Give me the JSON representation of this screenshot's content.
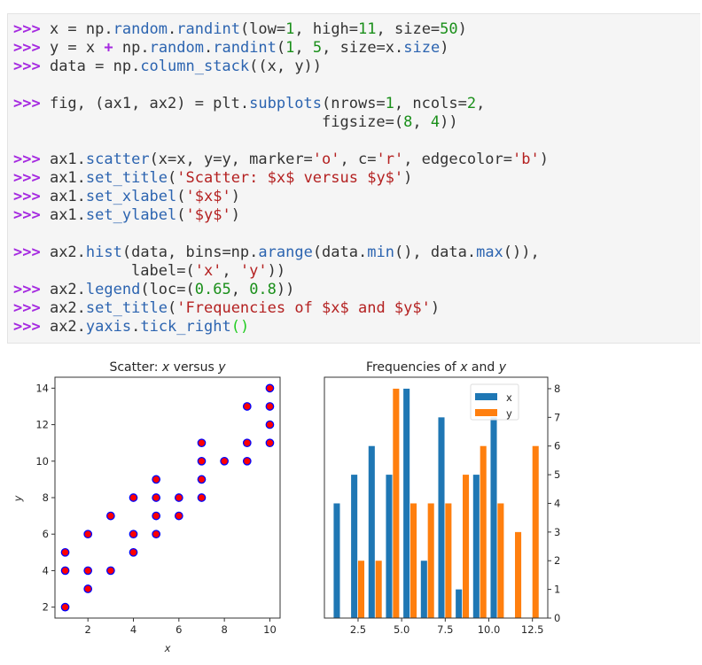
{
  "code": {
    "lines": [
      [
        [
          ">>> ",
          "p"
        ],
        [
          "x = np.",
          "n"
        ],
        [
          "random",
          "f"
        ],
        [
          ".",
          "n"
        ],
        [
          "randint",
          "f"
        ],
        [
          "(low=",
          "n"
        ],
        [
          "1",
          "g"
        ],
        [
          ", high=",
          "n"
        ],
        [
          "11",
          "g"
        ],
        [
          ", size=",
          "n"
        ],
        [
          "50",
          "g"
        ],
        [
          ")",
          "n"
        ]
      ],
      [
        [
          ">>> ",
          "p"
        ],
        [
          "y = x ",
          "n"
        ],
        [
          "+",
          "o"
        ],
        [
          " np.",
          "n"
        ],
        [
          "random",
          "f"
        ],
        [
          ".",
          "n"
        ],
        [
          "randint",
          "f"
        ],
        [
          "(",
          "n"
        ],
        [
          "1",
          "g"
        ],
        [
          ", ",
          "n"
        ],
        [
          "5",
          "g"
        ],
        [
          ", size=x.",
          "n"
        ],
        [
          "size",
          "f"
        ],
        [
          ")",
          "n"
        ]
      ],
      [
        [
          ">>> ",
          "p"
        ],
        [
          "data = np.",
          "n"
        ],
        [
          "column_stack",
          "f"
        ],
        [
          "((x, y))",
          "n"
        ]
      ],
      [],
      [
        [
          ">>> ",
          "p"
        ],
        [
          "fig, (ax1, ax2) = plt.",
          "n"
        ],
        [
          "subplots",
          "f"
        ],
        [
          "(nrows=",
          "n"
        ],
        [
          "1",
          "g"
        ],
        [
          ", ncols=",
          "n"
        ],
        [
          "2",
          "g"
        ],
        [
          ",",
          "n"
        ]
      ],
      [
        [
          "                                  figsize=(",
          "n"
        ],
        [
          "8",
          "g"
        ],
        [
          ", ",
          "n"
        ],
        [
          "4",
          "g"
        ],
        [
          "))",
          "n"
        ]
      ],
      [],
      [
        [
          ">>> ",
          "p"
        ],
        [
          "ax1.",
          "n"
        ],
        [
          "scatter",
          "f"
        ],
        [
          "(x=x, y=y, marker=",
          "n"
        ],
        [
          "'o'",
          "s"
        ],
        [
          ", c=",
          "n"
        ],
        [
          "'r'",
          "s"
        ],
        [
          ", edgecolor=",
          "n"
        ],
        [
          "'b'",
          "s"
        ],
        [
          ")",
          "n"
        ]
      ],
      [
        [
          ">>> ",
          "p"
        ],
        [
          "ax1.",
          "n"
        ],
        [
          "set_title",
          "f"
        ],
        [
          "(",
          "n"
        ],
        [
          "'Scatter: $x$ versus $y$'",
          "s"
        ],
        [
          ")",
          "n"
        ]
      ],
      [
        [
          ">>> ",
          "p"
        ],
        [
          "ax1.",
          "n"
        ],
        [
          "set_xlabel",
          "f"
        ],
        [
          "(",
          "n"
        ],
        [
          "'$x$'",
          "s"
        ],
        [
          ")",
          "n"
        ]
      ],
      [
        [
          ">>> ",
          "p"
        ],
        [
          "ax1.",
          "n"
        ],
        [
          "set_ylabel",
          "f"
        ],
        [
          "(",
          "n"
        ],
        [
          "'$y$'",
          "s"
        ],
        [
          ")",
          "n"
        ]
      ],
      [],
      [
        [
          ">>> ",
          "p"
        ],
        [
          "ax2.",
          "n"
        ],
        [
          "hist",
          "f"
        ],
        [
          "(data, bins=np.",
          "n"
        ],
        [
          "arange",
          "f"
        ],
        [
          "(data.",
          "n"
        ],
        [
          "min",
          "f"
        ],
        [
          "(), data.",
          "n"
        ],
        [
          "max",
          "f"
        ],
        [
          "()),",
          "n"
        ]
      ],
      [
        [
          "             label=(",
          "n"
        ],
        [
          "'x'",
          "s"
        ],
        [
          ", ",
          "n"
        ],
        [
          "'y'",
          "s"
        ],
        [
          "))",
          "n"
        ]
      ],
      [
        [
          ">>> ",
          "p"
        ],
        [
          "ax2.",
          "n"
        ],
        [
          "legend",
          "f"
        ],
        [
          "(loc=(",
          "n"
        ],
        [
          "0.65",
          "g"
        ],
        [
          ", ",
          "n"
        ],
        [
          "0.8",
          "g"
        ],
        [
          "))",
          "n"
        ]
      ],
      [
        [
          ">>> ",
          "p"
        ],
        [
          "ax2.",
          "n"
        ],
        [
          "set_title",
          "f"
        ],
        [
          "(",
          "n"
        ],
        [
          "'Frequencies of $x$ and $y$'",
          "s"
        ],
        [
          ")",
          "n"
        ]
      ],
      [
        [
          ">>> ",
          "p"
        ],
        [
          "ax2.",
          "n"
        ],
        [
          "yaxis",
          "f"
        ],
        [
          ".",
          "n"
        ],
        [
          "tick_right",
          "f"
        ],
        [
          "()",
          "b"
        ]
      ]
    ]
  },
  "chart_data": [
    {
      "type": "scatter",
      "title": {
        "prefix": "Scatter: ",
        "a": "x",
        "mid": " versus ",
        "b": "y"
      },
      "xlabel": "x",
      "ylabel": "y",
      "xlim": [
        0.55,
        10.45
      ],
      "ylim": [
        1.4,
        14.6
      ],
      "xticks": [
        2,
        4,
        6,
        8,
        10
      ],
      "yticks": [
        2,
        4,
        6,
        8,
        10,
        12,
        14
      ],
      "marker_color": "#ff0000",
      "edge_color": "#0000ff",
      "points": [
        [
          1,
          2
        ],
        [
          1,
          4
        ],
        [
          1,
          5
        ],
        [
          2,
          3
        ],
        [
          2,
          4
        ],
        [
          2,
          6
        ],
        [
          3,
          4
        ],
        [
          3,
          7
        ],
        [
          4,
          5
        ],
        [
          4,
          6
        ],
        [
          4,
          8
        ],
        [
          5,
          6
        ],
        [
          5,
          7
        ],
        [
          5,
          8
        ],
        [
          5,
          9
        ],
        [
          6,
          7
        ],
        [
          6,
          8
        ],
        [
          7,
          8
        ],
        [
          7,
          9
        ],
        [
          7,
          10
        ],
        [
          7,
          11
        ],
        [
          8,
          10
        ],
        [
          9,
          10
        ],
        [
          9,
          11
        ],
        [
          9,
          13
        ],
        [
          10,
          11
        ],
        [
          10,
          12
        ],
        [
          10,
          13
        ],
        [
          10,
          14
        ]
      ]
    },
    {
      "type": "bar",
      "title": {
        "prefix": "Frequencies of ",
        "a": "x",
        "mid": " and ",
        "b": "y"
      },
      "bin_edges": [
        1,
        2,
        3,
        4,
        5,
        6,
        7,
        8,
        9,
        10,
        11,
        12,
        13
      ],
      "xlim": [
        0.57,
        13.38
      ],
      "ylim": [
        0,
        8.4
      ],
      "xticks": [
        "2.5",
        "5.0",
        "7.5",
        "10.0",
        "12.5"
      ],
      "yticks": [
        0,
        1,
        2,
        3,
        4,
        5,
        6,
        7,
        8
      ],
      "y_axis_side": "right",
      "legend_placement": "top-right",
      "series": [
        {
          "name": "x",
          "color": "#1f77b4",
          "values": [
            4,
            5,
            6,
            5,
            8,
            2,
            7,
            1,
            5,
            7,
            0,
            0
          ]
        },
        {
          "name": "y",
          "color": "#ff7f0e",
          "values": [
            0,
            2,
            2,
            8,
            4,
            4,
            4,
            5,
            6,
            4,
            3,
            6
          ]
        }
      ]
    }
  ]
}
